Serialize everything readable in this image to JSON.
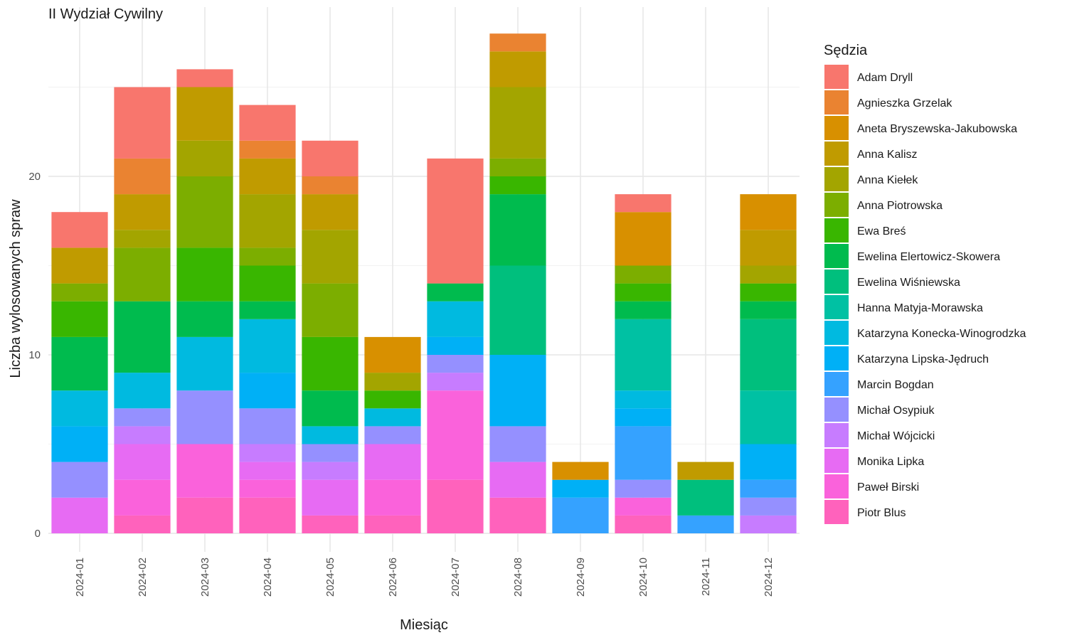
{
  "chart_data": {
    "type": "bar",
    "stacked": true,
    "title": "II Wydział Cywilny",
    "xlabel": "Miesiąc",
    "ylabel": "Liczba wylosowanych spraw",
    "ylim": [
      0,
      29
    ],
    "yticks": [
      0,
      10,
      20
    ],
    "grid": true,
    "legend_title": "Sędzia",
    "legend_position": "right",
    "categories": [
      "2024-01",
      "2024-02",
      "2024-03",
      "2024-04",
      "2024-05",
      "2024-06",
      "2024-07",
      "2024-08",
      "2024-09",
      "2024-10",
      "2024-11",
      "2024-12"
    ],
    "series": [
      {
        "name": "Adam Dryll",
        "color": "#F8766D",
        "values": [
          2,
          4,
          1,
          2,
          2,
          0,
          7,
          0,
          0,
          1,
          0,
          0
        ]
      },
      {
        "name": "Agnieszka Grzelak",
        "color": "#EA8331",
        "values": [
          0,
          2,
          0,
          1,
          1,
          0,
          0,
          1,
          0,
          0,
          0,
          0
        ]
      },
      {
        "name": "Aneta Bryszewska-Jakubowska",
        "color": "#D89000",
        "values": [
          0,
          0,
          0,
          0,
          0,
          2,
          0,
          0,
          1,
          3,
          0,
          2
        ]
      },
      {
        "name": "Anna Kalisz",
        "color": "#C09B00",
        "values": [
          2,
          2,
          3,
          2,
          2,
          0,
          0,
          2,
          0,
          0,
          1,
          2
        ]
      },
      {
        "name": "Anna Kiełek",
        "color": "#A3A500",
        "values": [
          0,
          1,
          2,
          3,
          3,
          1,
          0,
          4,
          0,
          0,
          0,
          1
        ]
      },
      {
        "name": "Anna Piotrowska",
        "color": "#7CAE00",
        "values": [
          1,
          3,
          4,
          1,
          3,
          0,
          0,
          1,
          0,
          1,
          0,
          0
        ]
      },
      {
        "name": "Ewa Breś",
        "color": "#39B600",
        "values": [
          2,
          0,
          3,
          2,
          3,
          1,
          0,
          1,
          0,
          1,
          0,
          1
        ]
      },
      {
        "name": "Ewelina Elertowicz-Skowera",
        "color": "#00BB4E",
        "values": [
          3,
          4,
          2,
          1,
          2,
          0,
          1,
          4,
          0,
          1,
          0,
          1
        ]
      },
      {
        "name": "Ewelina Wiśniewska",
        "color": "#00BF7D",
        "values": [
          0,
          0,
          0,
          0,
          0,
          0,
          0,
          5,
          0,
          0,
          2,
          4
        ]
      },
      {
        "name": "Hanna Matyja-Morawska",
        "color": "#00C1A3",
        "values": [
          0,
          0,
          0,
          0,
          0,
          0,
          0,
          0,
          0,
          4,
          0,
          3
        ]
      },
      {
        "name": "Katarzyna Konecka-Winogrodzka",
        "color": "#00BAE0",
        "values": [
          2,
          2,
          3,
          3,
          1,
          1,
          2,
          0,
          0,
          1,
          0,
          0
        ]
      },
      {
        "name": "Katarzyna Lipska-Jędruch",
        "color": "#00B0F6",
        "values": [
          2,
          0,
          0,
          2,
          0,
          0,
          1,
          4,
          1,
          1,
          0,
          2
        ]
      },
      {
        "name": "Marcin Bogdan",
        "color": "#35A2FF",
        "values": [
          0,
          0,
          0,
          0,
          0,
          0,
          0,
          0,
          2,
          3,
          1,
          1
        ]
      },
      {
        "name": "Michał Osypiuk",
        "color": "#9590FF",
        "values": [
          2,
          1,
          3,
          2,
          1,
          1,
          1,
          2,
          0,
          1,
          0,
          1
        ]
      },
      {
        "name": "Michał Wójcicki",
        "color": "#C77CFF",
        "values": [
          0,
          1,
          0,
          1,
          1,
          0,
          1,
          0,
          0,
          0,
          0,
          1
        ]
      },
      {
        "name": "Monika Lipka",
        "color": "#E76BF3",
        "values": [
          2,
          2,
          0,
          1,
          2,
          2,
          0,
          2,
          0,
          0,
          0,
          0
        ]
      },
      {
        "name": "Paweł Birski",
        "color": "#FA62DB",
        "values": [
          0,
          2,
          3,
          1,
          0,
          2,
          5,
          0,
          0,
          1,
          0,
          0
        ]
      },
      {
        "name": "Piotr Blus",
        "color": "#FF62BC",
        "values": [
          0,
          1,
          2,
          2,
          1,
          1,
          3,
          2,
          0,
          1,
          0,
          0
        ]
      }
    ]
  }
}
